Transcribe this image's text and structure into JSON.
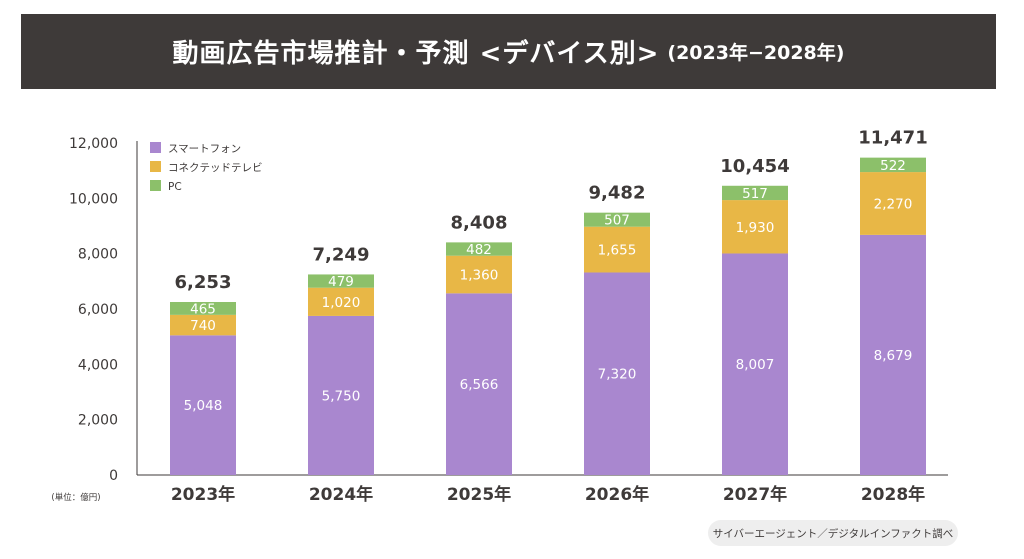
{
  "chart_data": {
    "type": "bar",
    "stacked": true,
    "title": "動画広告市場推計・予測 <デバイス別>",
    "subtitle": "(2023年−2028年)",
    "unit_label": "(単位：億円)",
    "categories": [
      "2023年",
      "2024年",
      "2025年",
      "2026年",
      "2027年",
      "2028年"
    ],
    "series": [
      {
        "name": "スマートフォン",
        "color": "#a987cf",
        "values": [
          5048,
          5750,
          6566,
          7320,
          8007,
          8679
        ],
        "labels": [
          "5,048",
          "5,750",
          "6,566",
          "7,320",
          "8,007",
          "8,679"
        ]
      },
      {
        "name": "コネクテッドテレビ",
        "color": "#e8b746",
        "values": [
          740,
          1020,
          1360,
          1655,
          1930,
          2270
        ],
        "labels": [
          "740",
          "1,020",
          "1,360",
          "1,655",
          "1,930",
          "2,270"
        ]
      },
      {
        "name": "PC",
        "color": "#8cc06a",
        "values": [
          465,
          479,
          482,
          507,
          517,
          522
        ],
        "labels": [
          "465",
          "479",
          "482",
          "507",
          "517",
          "522"
        ]
      }
    ],
    "totals": [
      6253,
      7249,
      8408,
      9482,
      10454,
      11471
    ],
    "total_labels": [
      "6,253",
      "7,249",
      "8,408",
      "9,482",
      "10,454",
      "11,471"
    ],
    "ylim": [
      0,
      12000
    ],
    "yticks": [
      0,
      2000,
      4000,
      6000,
      8000,
      10000,
      12000
    ],
    "ytick_labels": [
      "0",
      "2,000",
      "4,000",
      "6,000",
      "8,000",
      "10,000",
      "12,000"
    ],
    "legend_position": "top-left",
    "grid": false
  },
  "source": "サイバーエージェント／デジタルインファクト調べ"
}
